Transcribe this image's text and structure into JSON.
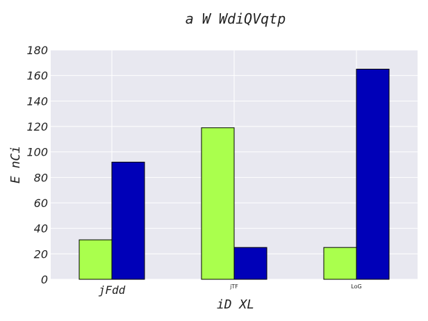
{
  "chart_data": {
    "type": "bar",
    "title": "a W WdiQVqtp",
    "xlabel": "iD XL",
    "ylabel": "E nCi",
    "categories": [
      "jFdd",
      "jTF",
      "LoG"
    ],
    "series": [
      {
        "values": [
          31,
          119,
          25
        ],
        "color": "#aaff4d"
      },
      {
        "values": [
          92,
          25,
          165
        ],
        "color": "#0000b8"
      }
    ],
    "ylim": [
      0,
      180
    ],
    "yticks": [
      0,
      20,
      40,
      60,
      80,
      100,
      120,
      140,
      160,
      180
    ],
    "grid": true,
    "background": "#e8e8f0"
  }
}
